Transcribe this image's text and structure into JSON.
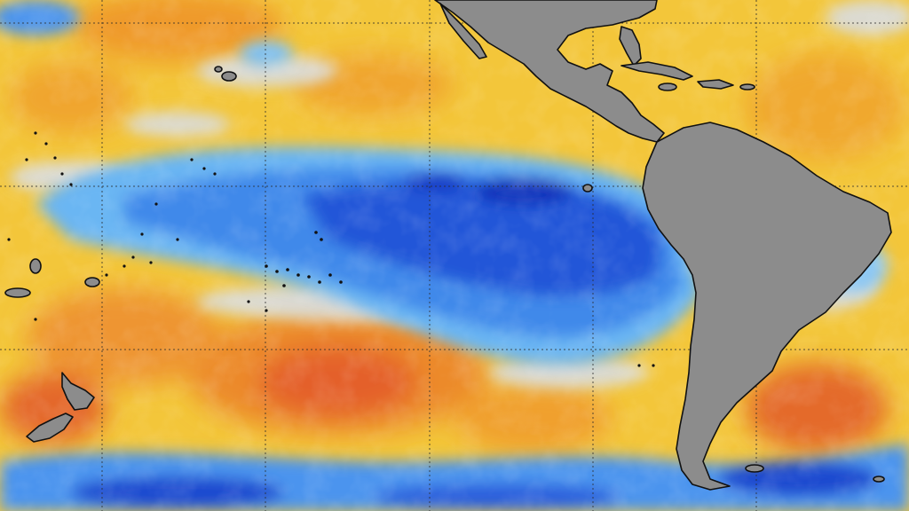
{
  "map": {
    "kind": "sea-surface-temperature-anomaly",
    "region": "eastern-and-central-pacific-ocean",
    "projection": "equirectangular",
    "grid_lines": true,
    "grid_style": "dotted",
    "land_color": "#8c8c8c",
    "coastline_color": "#111111",
    "grid_color": "#2a2a2a",
    "palette": {
      "strong_cool": "#0a2bc8",
      "cool": "#2a6be6",
      "mild_cool": "#5fb2f2",
      "near_normal": "#d9dde2",
      "mild_warm": "#f7d83a",
      "warm": "#f2ae2c",
      "strong_warm": "#e2562a"
    },
    "land_masses": [
      "north-america",
      "central-america",
      "south-america",
      "caribbean-islands",
      "new-zealand",
      "hawaiian-islands",
      "pacific-islands",
      "galapagos-islands"
    ]
  }
}
